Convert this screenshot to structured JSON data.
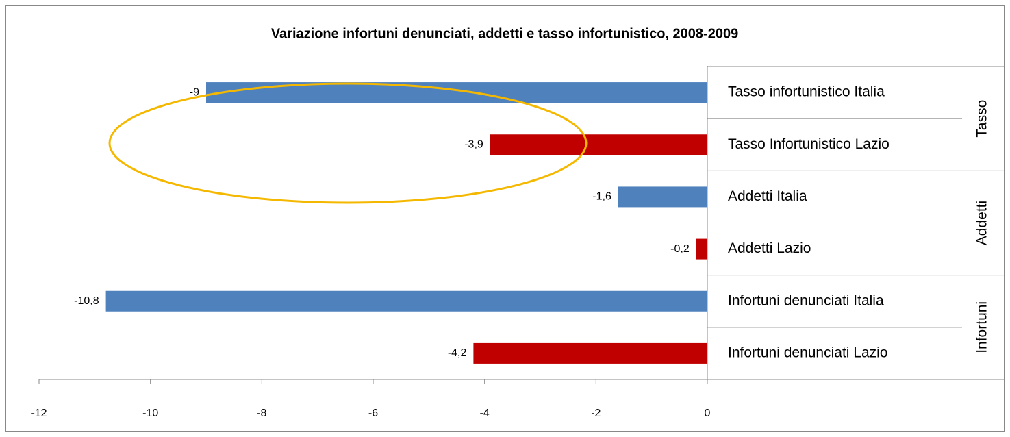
{
  "chart_data": {
    "type": "bar",
    "orientation": "horizontal",
    "title": "Variazione infortuni denunciati, addetti e tasso infortunistico, 2008-2009",
    "groups": [
      {
        "name": "Tasso",
        "categories": [
          "Tasso infortunistico Italia",
          "Tasso Infortunistico Lazio"
        ],
        "values": [
          -9,
          -3.9
        ],
        "value_labels": [
          "-9",
          "-3,9"
        ],
        "colors": [
          "#4f81bd",
          "#c00000"
        ]
      },
      {
        "name": "Addetti",
        "categories": [
          "Addetti Italia",
          "Addetti Lazio"
        ],
        "values": [
          -1.6,
          -0.2
        ],
        "value_labels": [
          "-1,6",
          "-0,2"
        ],
        "colors": [
          "#4f81bd",
          "#c00000"
        ]
      },
      {
        "name": "Infortuni",
        "categories": [
          "Infortuni denunciati Italia",
          "Infortuni denunciati Lazio"
        ],
        "values": [
          -10.8,
          -4.2
        ],
        "value_labels": [
          "-10,8",
          "-4,2"
        ],
        "colors": [
          "#4f81bd",
          "#c00000"
        ]
      }
    ],
    "xlim": [
      -12,
      0
    ],
    "xticks": [
      -12,
      -10,
      -8,
      -6,
      -4,
      -2,
      0
    ]
  }
}
